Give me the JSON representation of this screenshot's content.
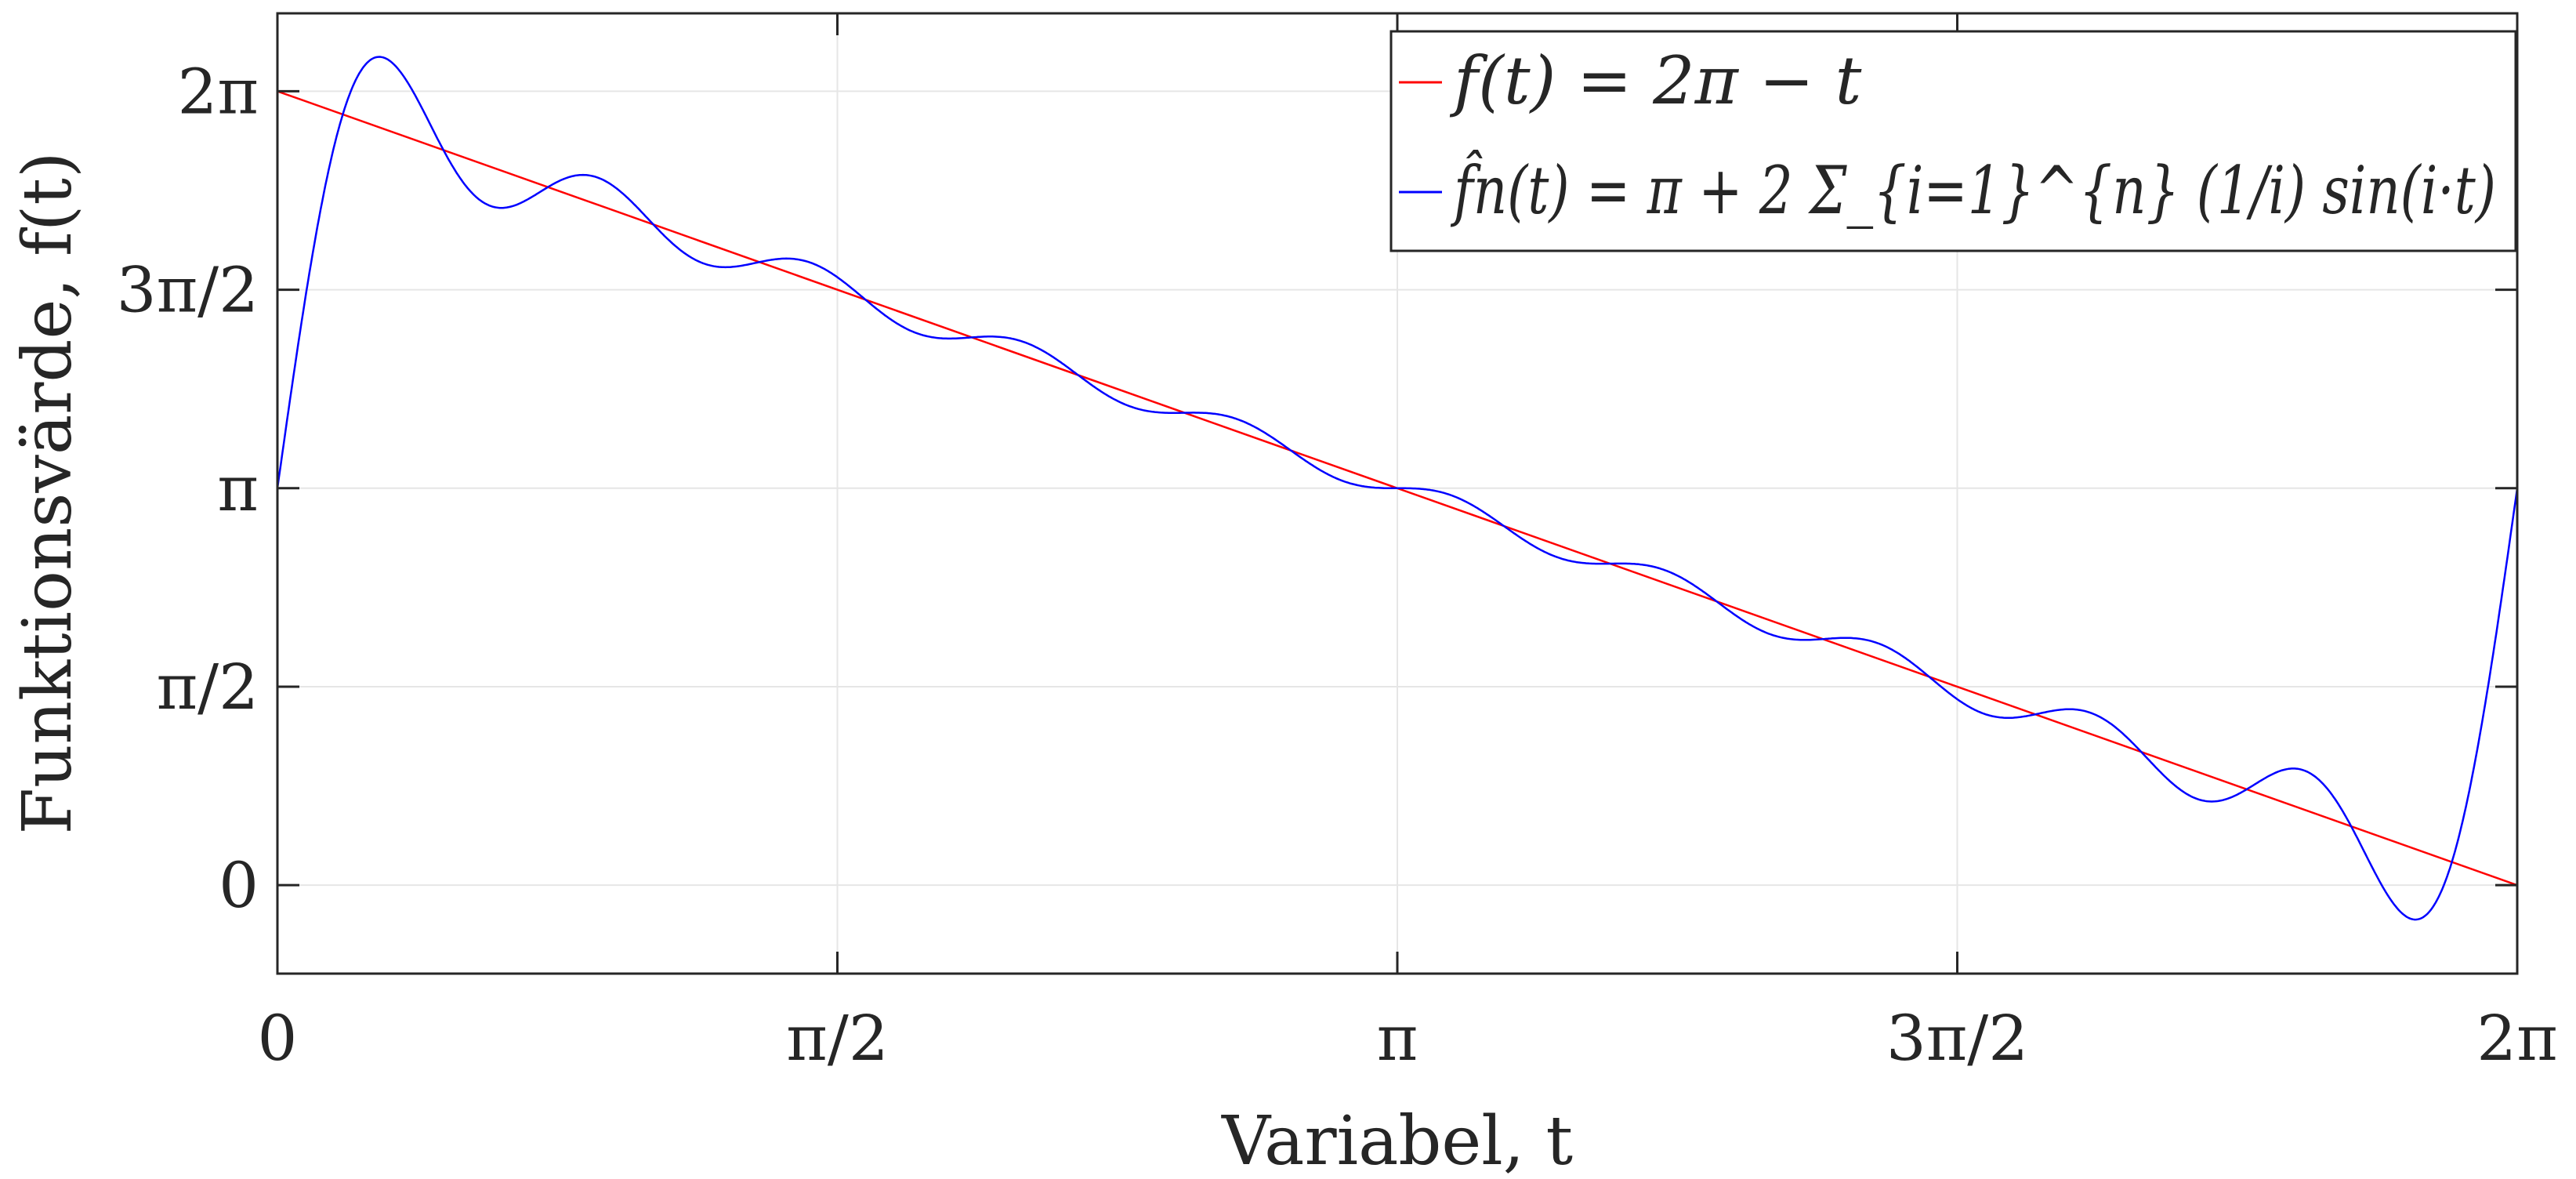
{
  "chart_data": {
    "type": "line",
    "xlabel": "Variabel, t",
    "ylabel": "Funktionsvärde, f(t)",
    "xlim": [
      0,
      6.2832
    ],
    "ylim": [
      -0.7,
      6.9
    ],
    "grid": true,
    "legend_position": "top-right",
    "x_ticks": [
      {
        "value": 0,
        "label": "0"
      },
      {
        "value": 1.5708,
        "label": "π/2"
      },
      {
        "value": 3.1416,
        "label": "π"
      },
      {
        "value": 4.7124,
        "label": "3π/2"
      },
      {
        "value": 6.2832,
        "label": "2π"
      }
    ],
    "y_ticks": [
      {
        "value": 0,
        "label": "0"
      },
      {
        "value": 1.5708,
        "label": "π/2"
      },
      {
        "value": 3.1416,
        "label": "π"
      },
      {
        "value": 4.7124,
        "label": "3π/2"
      },
      {
        "value": 6.2832,
        "label": "2π"
      }
    ],
    "series": [
      {
        "name": "f(t) = 2π − t",
        "color": "#ff0000",
        "x": [
          0,
          6.2832
        ],
        "y": [
          6.2832,
          0
        ]
      },
      {
        "name": "f̂n(t) = π + 2 Σ_{i=1}^{n} (1/i) sin(i·t)",
        "color": "#0000ff",
        "n": 10,
        "x": [
          0,
          0.1,
          0.2,
          0.29,
          0.4,
          0.5,
          0.6,
          0.62,
          0.8,
          1.0,
          1.2,
          1.4,
          1.6,
          1.9,
          2.2,
          2.5,
          2.8,
          3.1416,
          3.5,
          3.8,
          4.1,
          4.4,
          4.7124,
          5.0,
          5.3,
          5.5,
          5.65,
          5.8,
          5.99,
          6.1,
          6.2832
        ],
        "y": [
          3.1416,
          4.9,
          6.1,
          6.6,
          6.1,
          5.4,
          5.3,
          5.32,
          5.7,
          5.0,
          4.75,
          4.9,
          4.4,
          4.2,
          3.75,
          3.75,
          3.35,
          3.1416,
          2.8,
          2.4,
          2.35,
          2.0,
          1.6,
          1.5,
          0.7,
          1.0,
          0.85,
          0.2,
          -0.3,
          0.5,
          3.1416
        ]
      }
    ]
  }
}
